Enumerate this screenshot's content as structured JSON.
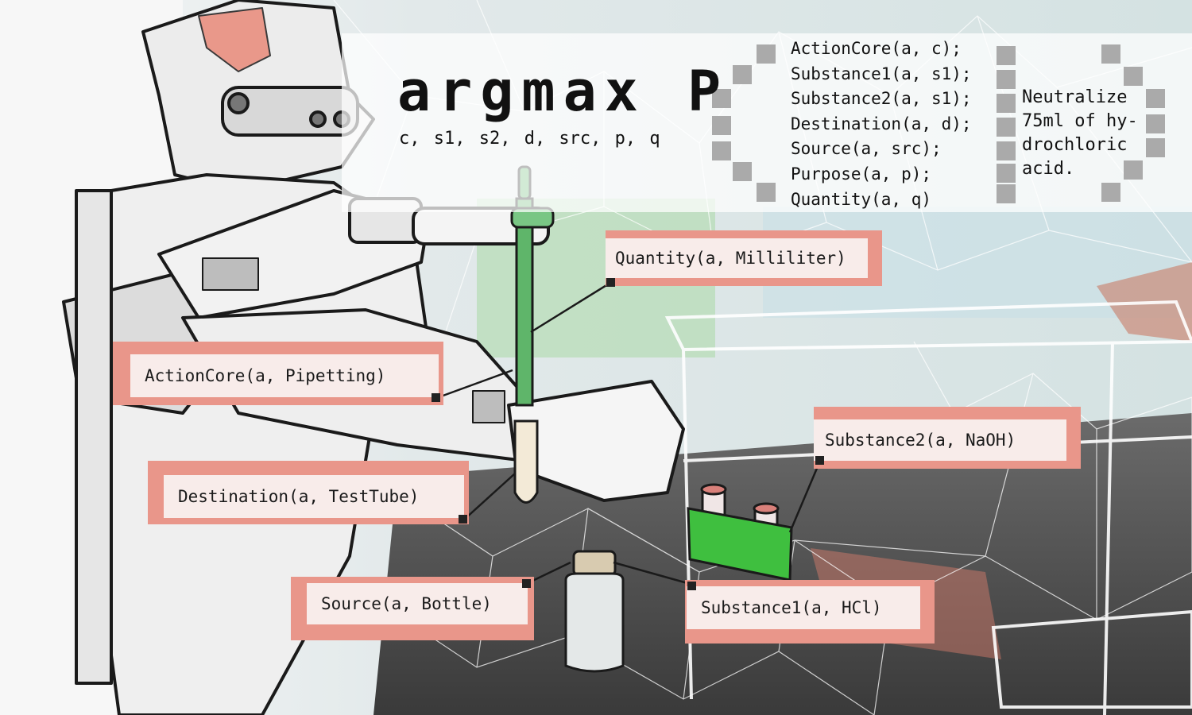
{
  "formula": {
    "title": "argmax P",
    "subscript": "c, s1, s2, d, src, p, q",
    "predicates": [
      "ActionCore(a, c);",
      "Substance1(a, s1);",
      "Substance2(a, s1);",
      "Destination(a, d);",
      "Source(a, src);",
      "Purpose(a, p);",
      "Quantity(a, q)"
    ],
    "goal": "Neutralize\n75ml of hy-\ndrochloric\nacid."
  },
  "tags": {
    "quantity": "Quantity(a, Milliliter)",
    "action_core": "ActionCore(a, Pipetting)",
    "destination": "Destination(a, TestTube)",
    "source": "Source(a, Bottle)",
    "substance1": "Substance1(a, HCl)",
    "substance2": "Substance2(a, NaOH)"
  },
  "colors": {
    "tag_shadow": "#e9968a",
    "tag_fill": "#f8ecea",
    "pipette_green": "#5fb56a",
    "rack_green": "#3fbf3f",
    "bench_dark": "#4a4a4a",
    "mesh": "#ffffff"
  }
}
